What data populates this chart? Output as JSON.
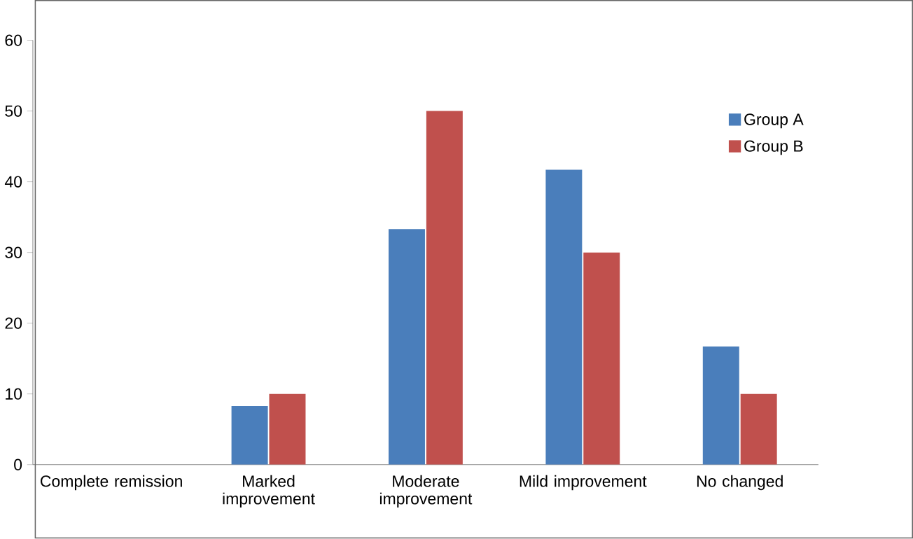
{
  "chart_data": {
    "type": "bar",
    "categories": [
      "Complete remission",
      "Marked improvement",
      "Moderate improvement",
      "Mild improvement",
      "No changed"
    ],
    "series": [
      {
        "name": "Group A",
        "color": "#4a7ebb",
        "values": [
          0,
          8.3,
          33.3,
          41.7,
          16.7
        ]
      },
      {
        "name": "Group B",
        "color": "#c0504d",
        "values": [
          0,
          10,
          50,
          30,
          10
        ]
      }
    ],
    "ylim": [
      0,
      60
    ],
    "yticks": [
      0,
      10,
      20,
      30,
      40,
      50,
      60
    ],
    "grid": false,
    "legend": "right"
  }
}
